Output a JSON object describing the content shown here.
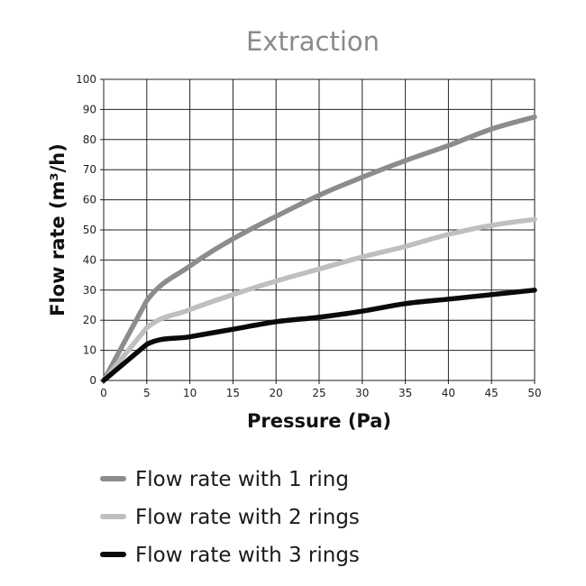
{
  "chart_data": {
    "type": "line",
    "title": "Extraction",
    "xlabel": "Pressure (Pa)",
    "ylabel": "Flow rate (m³/h)",
    "xlim": [
      0,
      50
    ],
    "ylim": [
      0,
      100
    ],
    "xticks": [
      0,
      5,
      10,
      15,
      20,
      25,
      30,
      35,
      40,
      45,
      50
    ],
    "yticks": [
      0,
      10,
      20,
      30,
      40,
      50,
      60,
      70,
      80,
      90,
      100
    ],
    "grid": true,
    "legend_position": "bottom",
    "x": [
      0,
      5,
      10,
      15,
      20,
      25,
      30,
      35,
      40,
      45,
      50
    ],
    "series": [
      {
        "name": "Flow rate with 1 ring",
        "color": "#8c8c8c",
        "values": [
          0,
          26.5,
          38,
          47,
          54.5,
          61.5,
          67.5,
          73,
          78,
          83.5,
          87.5
        ]
      },
      {
        "name": "Flow rate with 2 rings",
        "color": "#bfbfbf",
        "values": [
          0,
          17.5,
          23.5,
          28.5,
          33,
          37,
          41,
          44.5,
          48.5,
          51.5,
          53.5
        ]
      },
      {
        "name": "Flow rate with 3 rings",
        "color": "#0a0a0a",
        "values": [
          0,
          12,
          14.5,
          17,
          19.5,
          21,
          23,
          25.5,
          27,
          28.5,
          30
        ]
      }
    ]
  }
}
